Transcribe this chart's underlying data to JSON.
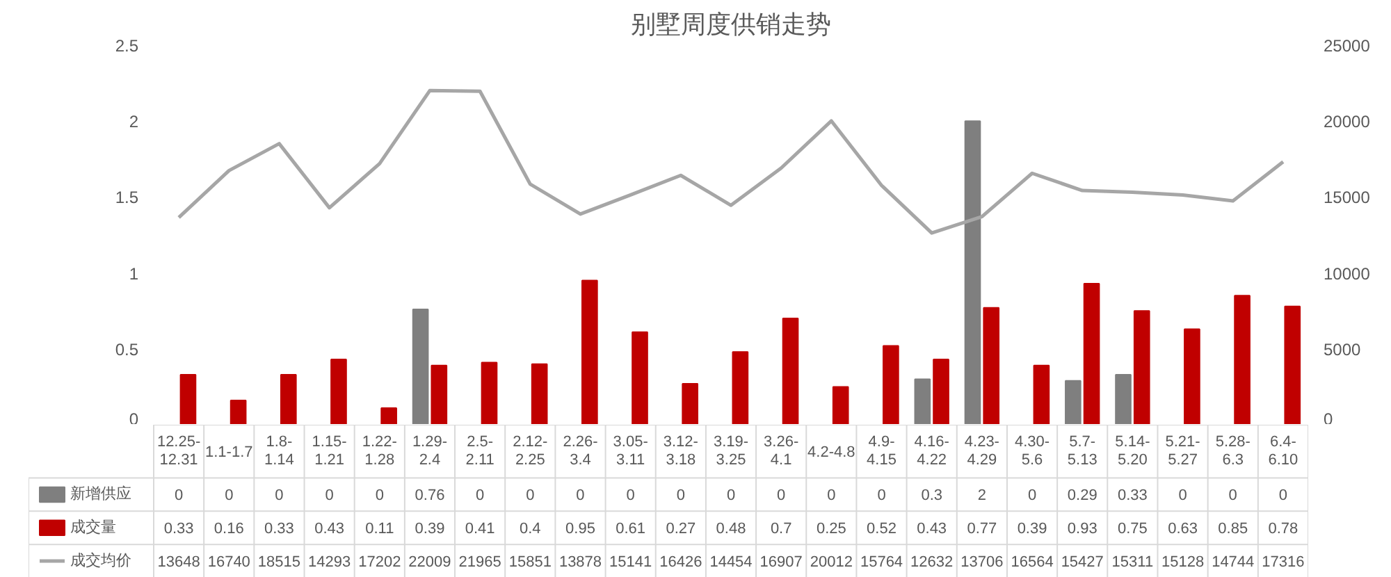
{
  "chart_data": {
    "type": "bar",
    "title": "别墅周度供销走势",
    "categories": [
      "12.25-12.31",
      "1.1-1.7",
      "1.8-1.14",
      "1.15-1.21",
      "1.22-1.28",
      "1.29-2.4",
      "2.5-2.11",
      "2.12-2.25",
      "2.26-3.4",
      "3.05-3.11",
      "3.12-3.18",
      "3.19-3.25",
      "3.26-4.1",
      "4.2-4.8",
      "4.9-4.15",
      "4.16-4.22",
      "4.23-4.29",
      "4.30-5.6",
      "5.7-5.13",
      "5.14-5.20",
      "5.21-5.27",
      "5.28-6.3",
      "6.4-6.10"
    ],
    "series": [
      {
        "name": "新增供应",
        "type": "bar",
        "color": "#7f7f7f",
        "values": [
          0,
          0,
          0,
          0,
          0,
          0.76,
          0,
          0,
          0,
          0,
          0,
          0,
          0,
          0,
          0,
          0.3,
          2,
          0,
          0.29,
          0.33,
          0,
          0,
          0
        ]
      },
      {
        "name": "成交量",
        "type": "bar",
        "color": "#c00000",
        "values": [
          0.33,
          0.16,
          0.33,
          0.43,
          0.11,
          0.39,
          0.41,
          0.4,
          0.95,
          0.61,
          0.27,
          0.48,
          0.7,
          0.25,
          0.52,
          0.43,
          0.77,
          0.39,
          0.93,
          0.75,
          0.63,
          0.85,
          0.78
        ]
      },
      {
        "name": "成交均价",
        "type": "line",
        "axis": "y2",
        "color": "#a6a6a6",
        "values": [
          13648,
          16740,
          18515,
          14293,
          17202,
          22009,
          21965,
          15851,
          13878,
          15141,
          16426,
          14454,
          16907,
          20012,
          15764,
          12632,
          13706,
          16564,
          15427,
          15311,
          15128,
          14744,
          17316
        ]
      }
    ],
    "ylim": [
      0,
      2.5
    ],
    "yticks": [
      0,
      0.5,
      1,
      1.5,
      2,
      2.5
    ],
    "y2lim": [
      0,
      25000
    ],
    "y2ticks": [
      0,
      5000,
      10000,
      15000,
      20000,
      25000
    ],
    "grid": false,
    "legend": "bottom",
    "data_labels": true
  }
}
